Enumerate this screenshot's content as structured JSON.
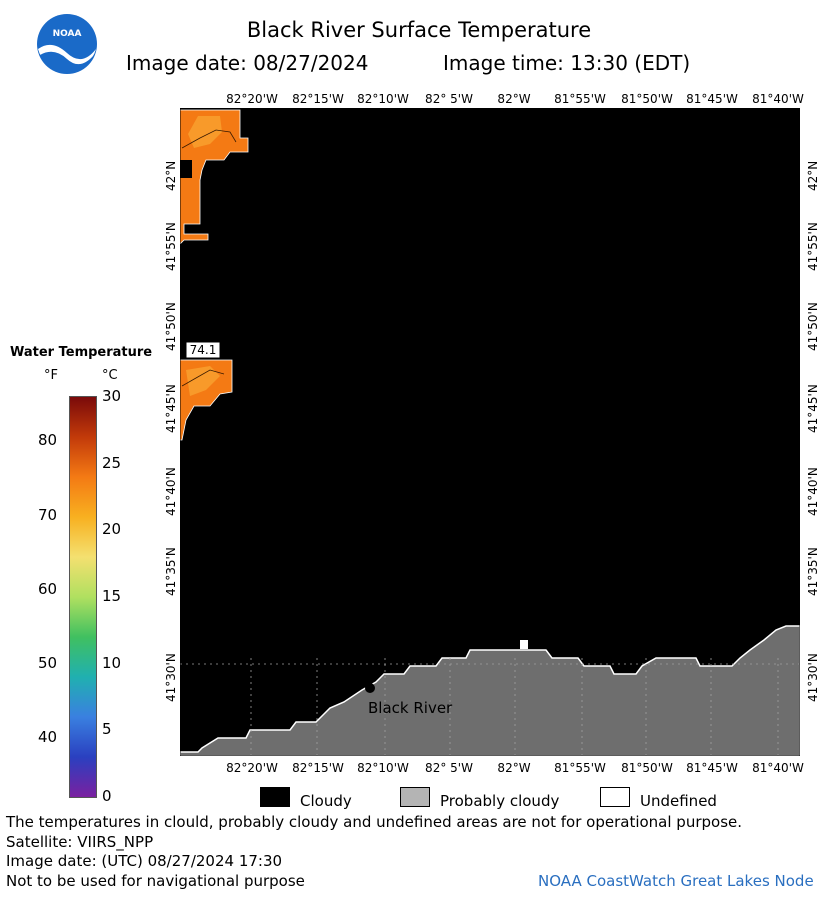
{
  "header": {
    "title": "Black River Surface Temperature",
    "date_text": "Image date: 08/27/2024",
    "time_text": "Image time: 13:30 (EDT)",
    "logo_text": "NOAA"
  },
  "map": {
    "lon_labels": [
      "82°20'W",
      "82°15'W",
      "82°10'W",
      "82° 5'W",
      "82°W",
      "81°55'W",
      "81°50'W",
      "81°45'W",
      "81°40'W"
    ],
    "lat_labels": [
      "42°N",
      "41°55'N",
      "41°50'N",
      "41°45'N",
      "41°40'N",
      "41°35'N",
      "41°30'N"
    ],
    "place_label": "Black River",
    "temp_readout": "74.1",
    "colors": {
      "cloud": "#000000",
      "land": "#6e6e6e",
      "water_warm": "#f47a14",
      "water_warm_light": "#f89a2a"
    }
  },
  "colorbar": {
    "title": "Water Temperature",
    "unit_f": "°F",
    "unit_c": "°C",
    "f_ticks": [
      "80",
      "70",
      "60",
      "50",
      "40"
    ],
    "c_ticks": [
      "30",
      "25",
      "20",
      "15",
      "10",
      "5",
      "0"
    ],
    "colors": [
      "#7a0a0a",
      "#c23a0a",
      "#f47a14",
      "#f8b020",
      "#f4e070",
      "#b0e060",
      "#40c060",
      "#20b0b0",
      "#3a80e0",
      "#2a40c0",
      "#7a20a0"
    ]
  },
  "legend": {
    "cloudy": "Cloudy",
    "probably_cloudy": "Probably cloudy",
    "undefined": "Undefined",
    "colors": {
      "cloudy": "#000000",
      "probably_cloudy": "#b4b4b4",
      "undefined": "#ffffff"
    }
  },
  "footer": {
    "disclaimer": "The temperatures in clould, probably cloudy and undefined areas are not for operational purpose.",
    "satellite": "Satellite: VIIRS_NPP",
    "utc_date": "Image date: (UTC) 08/27/2024  17:30",
    "nav_warning": "Not to be used for navigational purpose",
    "credit": "NOAA CoastWatch Great Lakes Node"
  }
}
